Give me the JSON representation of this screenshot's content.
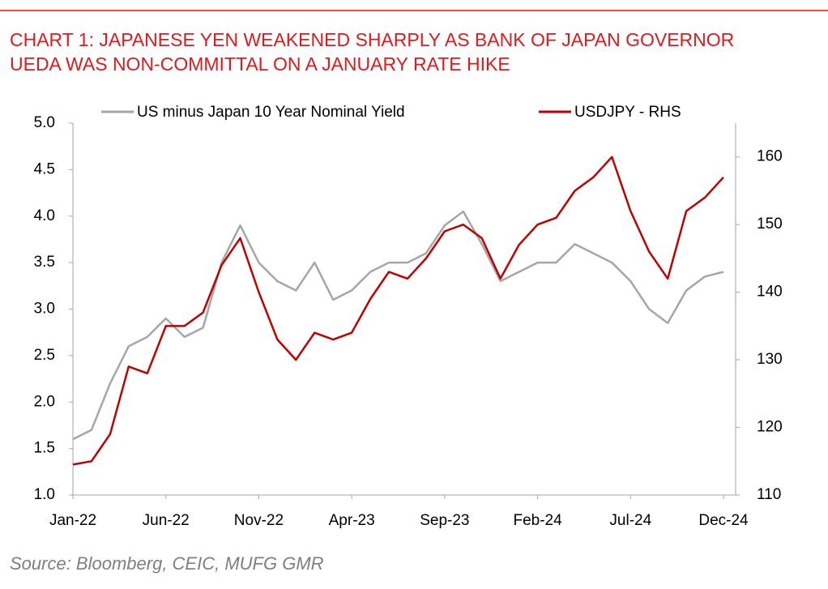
{
  "chart_data": {
    "type": "line",
    "title": "CHART 1: JAPANESE YEN WEAKENED SHARPLY AS BANK OF JAPAN GOVERNOR UEDA WAS NON-COMMITTAL ON A JANUARY RATE HIKE",
    "source": "Source: Bloomberg, CEIC, MUFG GMR",
    "categories": [
      "Jan-22",
      null,
      null,
      null,
      null,
      "Jun-22",
      null,
      null,
      null,
      null,
      "Nov-22",
      null,
      null,
      null,
      null,
      "Apr-23",
      null,
      null,
      null,
      null,
      "Sep-23",
      null,
      null,
      null,
      null,
      "Feb-24",
      null,
      null,
      null,
      null,
      "Jul-24",
      null,
      null,
      null,
      null,
      "Dec-24"
    ],
    "series": [
      {
        "name": "US minus Japan 10 Year Nominal Yield",
        "color": "#a6a6a6",
        "values": [
          1.6,
          1.7,
          2.2,
          2.6,
          2.7,
          2.9,
          2.7,
          2.8,
          3.5,
          3.9,
          3.5,
          3.3,
          3.2,
          3.5,
          3.1,
          3.2,
          3.4,
          3.5,
          3.5,
          3.6,
          3.9,
          4.05,
          3.7,
          3.3,
          3.4,
          3.5,
          3.5,
          3.7,
          3.6,
          3.5,
          3.3,
          3.0,
          2.85,
          3.2,
          3.35,
          3.4
        ]
      },
      {
        "name": "USDJPY - RHS",
        "color": "#c00000",
        "axis": "y2",
        "values": [
          114.5,
          115,
          119,
          129,
          128,
          135,
          135,
          137,
          144,
          148,
          140,
          133,
          130,
          134,
          133,
          134,
          139,
          143,
          142,
          145,
          149,
          150,
          148,
          142,
          147,
          150,
          151,
          155,
          157,
          160,
          152,
          146,
          142,
          152,
          154,
          157
        ]
      }
    ],
    "ylim": [
      1,
      5
    ],
    "yticks": [
      {
        "value": 1,
        "label": "1.0"
      },
      {
        "value": 1.5,
        "label": "1.5"
      },
      {
        "value": 2,
        "label": "2.0"
      },
      {
        "value": 2.5,
        "label": "2.5"
      },
      {
        "value": 3,
        "label": "3.0"
      },
      {
        "value": 3.5,
        "label": "3.5"
      },
      {
        "value": 4,
        "label": "4.0"
      },
      {
        "value": 4.5,
        "label": "4.5"
      },
      {
        "value": 5,
        "label": "5.0"
      }
    ],
    "y2lim": [
      110,
      165
    ],
    "y2ticks": [
      110,
      120,
      130,
      140,
      150,
      160
    ],
    "grid": false
  }
}
